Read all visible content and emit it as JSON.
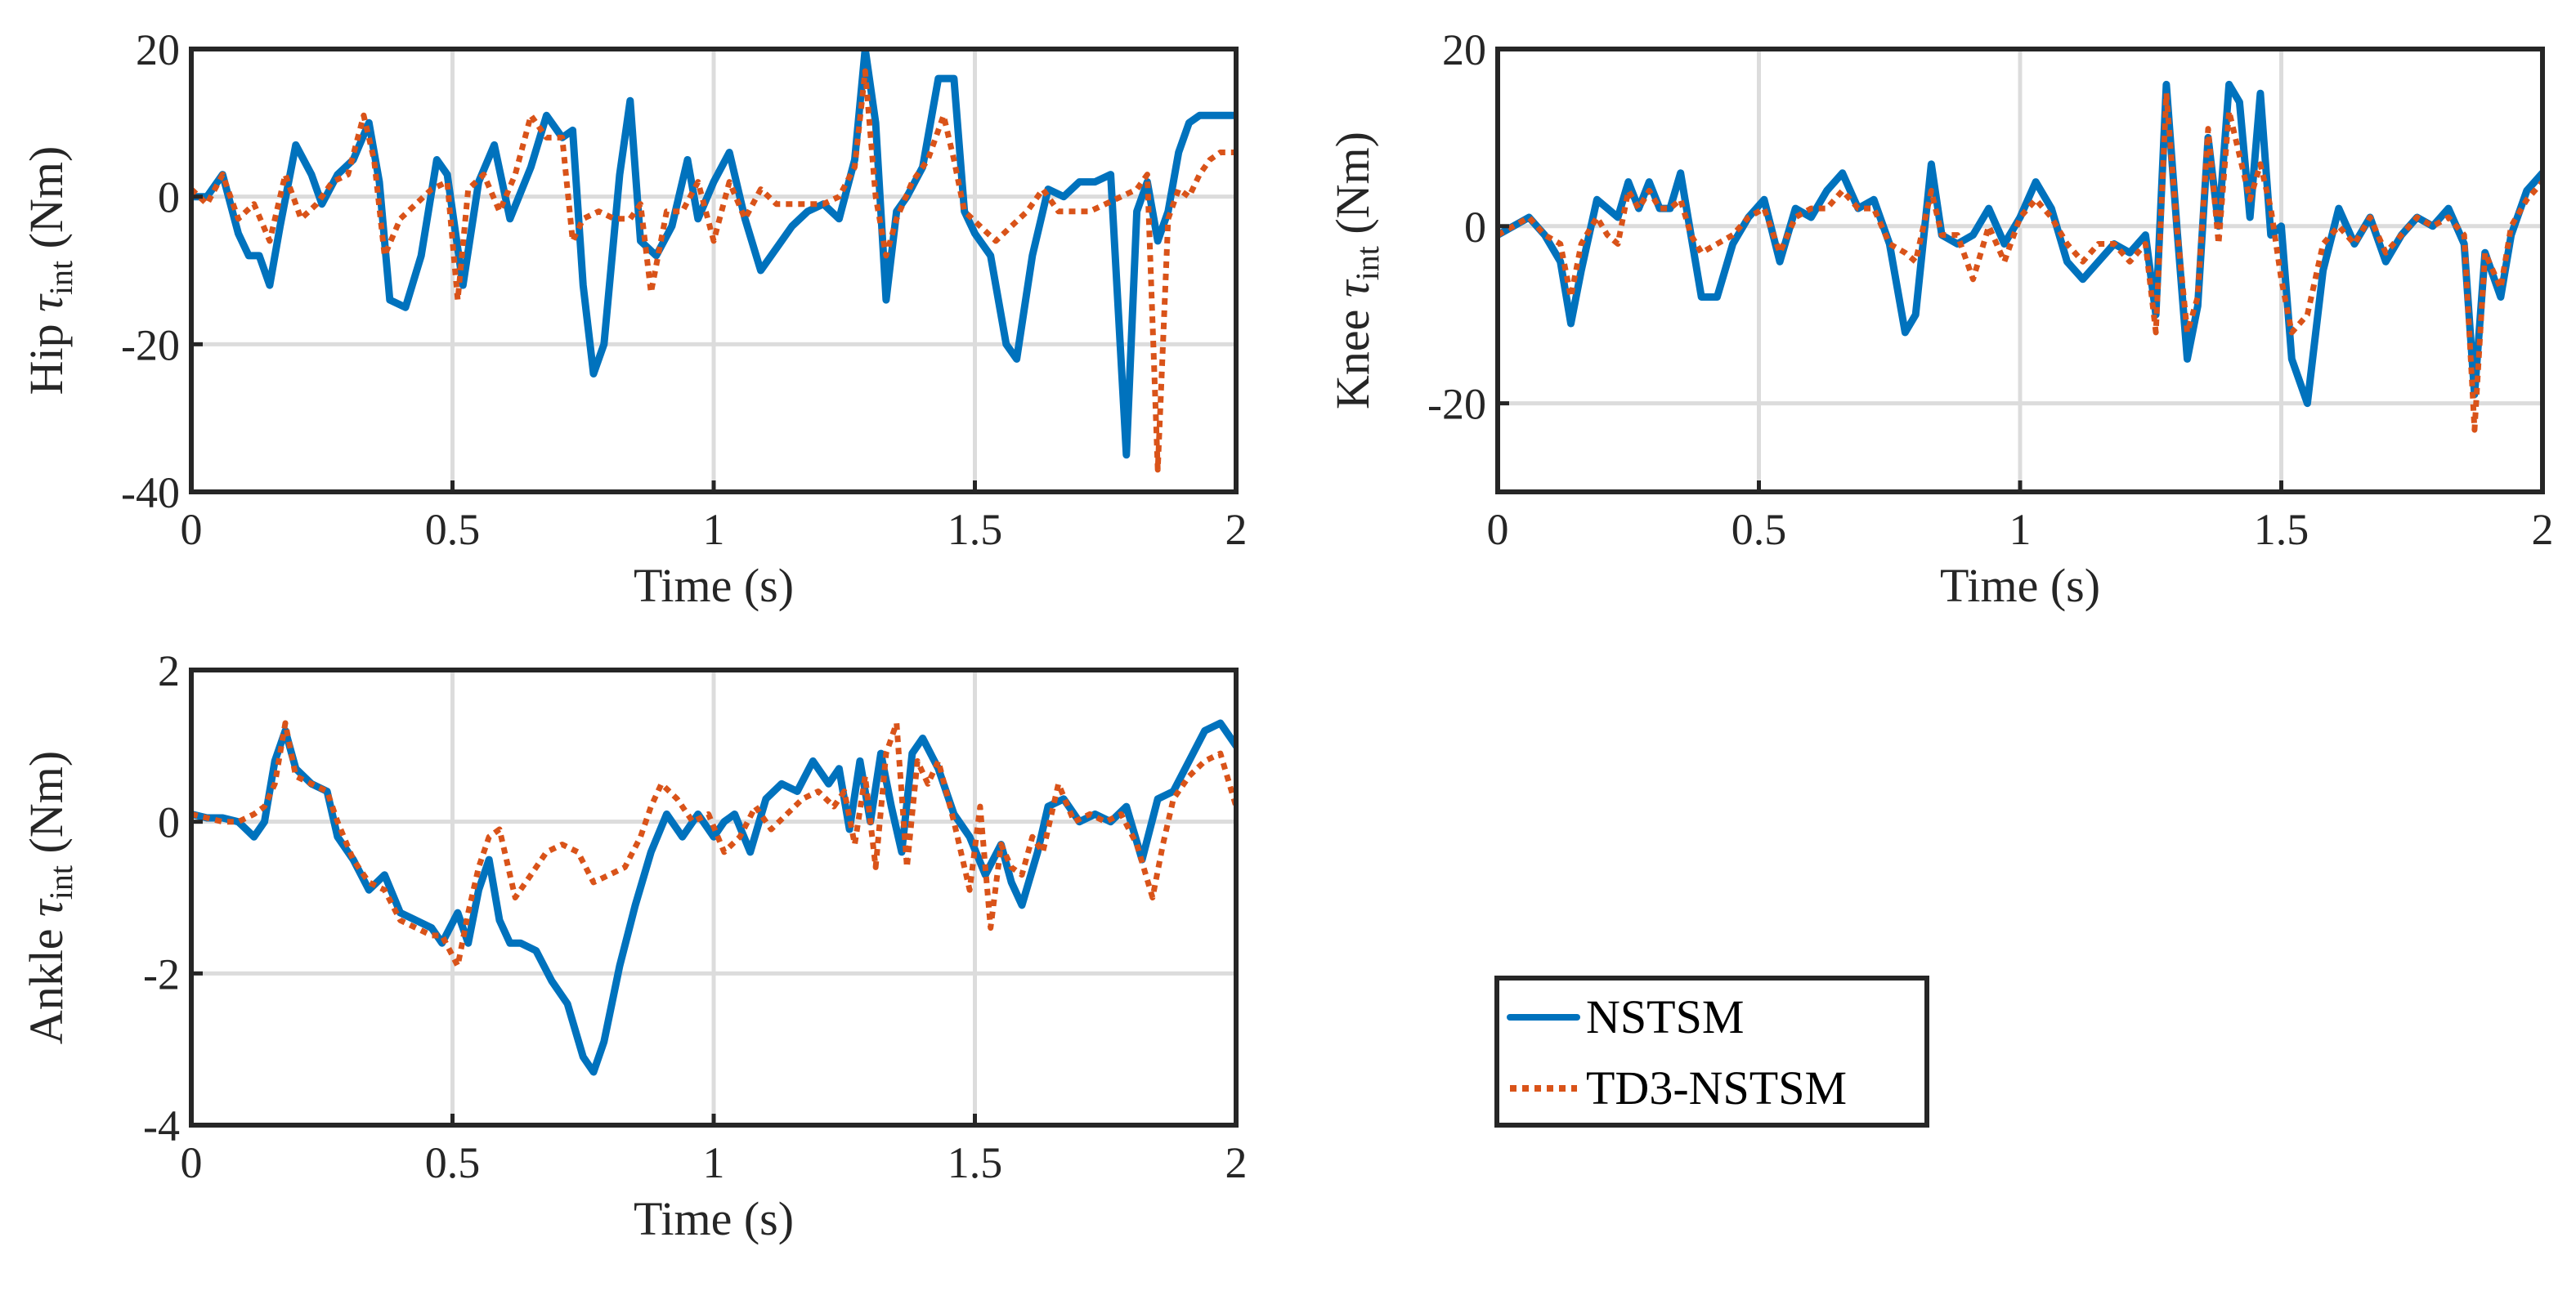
{
  "colors": {
    "nstsm": "#0072bd",
    "td3": "#d95319",
    "axis": "#262626",
    "grid": "#dcdcdc"
  },
  "legend": {
    "entries": [
      "NSTSM",
      "TD3-NSTSM"
    ],
    "placement": "bottom-right"
  },
  "chart_data": [
    {
      "id": "hip",
      "type": "line",
      "xlabel": "Time (s)",
      "ylabel_prefix": "Hip ",
      "ylabel_symbol": "τ",
      "ylabel_sub": "int",
      "ylabel_unit": " (Nm)",
      "xlim": [
        0,
        2
      ],
      "ylim": [
        -40,
        20
      ],
      "xticks": [
        0,
        0.5,
        1,
        1.5,
        2
      ],
      "xtick_labels": [
        "0",
        "0.5",
        "1",
        "1.5",
        "2"
      ],
      "yticks": [
        -40,
        -20,
        0,
        20
      ],
      "ytick_labels": [
        "-40",
        "-20",
        "0",
        "20"
      ],
      "grid": true,
      "series": [
        {
          "name": "NSTSM",
          "x": [
            0,
            0.03,
            0.06,
            0.09,
            0.11,
            0.13,
            0.15,
            0.17,
            0.2,
            0.23,
            0.25,
            0.28,
            0.31,
            0.34,
            0.36,
            0.38,
            0.41,
            0.44,
            0.47,
            0.49,
            0.52,
            0.55,
            0.58,
            0.61,
            0.65,
            0.68,
            0.71,
            0.73,
            0.75,
            0.77,
            0.79,
            0.82,
            0.84,
            0.86,
            0.89,
            0.92,
            0.95,
            0.97,
            1.0,
            1.03,
            1.06,
            1.09,
            1.12,
            1.15,
            1.18,
            1.21,
            1.24,
            1.27,
            1.29,
            1.31,
            1.33,
            1.35,
            1.37,
            1.4,
            1.43,
            1.46,
            1.48,
            1.5,
            1.53,
            1.56,
            1.58,
            1.61,
            1.64,
            1.67,
            1.7,
            1.73,
            1.76,
            1.79,
            1.81,
            1.83,
            1.85,
            1.87,
            1.89,
            1.91,
            1.93,
            1.95,
            1.97,
            2.0
          ],
          "y": [
            0,
            0,
            3,
            -5,
            -8,
            -8,
            -12,
            -4,
            7,
            3,
            -1,
            3,
            5,
            10,
            2,
            -14,
            -15,
            -8,
            5,
            3,
            -12,
            2,
            7,
            -3,
            4,
            11,
            8,
            9,
            -12,
            -24,
            -20,
            3,
            13,
            -6,
            -8,
            -4,
            5,
            -3,
            2,
            6,
            -3,
            -10,
            -7,
            -4,
            -2,
            -1,
            -3,
            5,
            20,
            10,
            -14,
            -2,
            0,
            4,
            16,
            16,
            -2,
            -5,
            -8,
            -20,
            -22,
            -8,
            1,
            0,
            2,
            2,
            3,
            -35,
            -2,
            2,
            -6,
            -2,
            6,
            10,
            11,
            11,
            11,
            11
          ]
        },
        {
          "name": "TD3-NSTSM",
          "x": [
            0,
            0.03,
            0.06,
            0.09,
            0.12,
            0.15,
            0.18,
            0.21,
            0.24,
            0.27,
            0.3,
            0.33,
            0.35,
            0.37,
            0.4,
            0.43,
            0.46,
            0.49,
            0.51,
            0.53,
            0.56,
            0.59,
            0.62,
            0.65,
            0.68,
            0.71,
            0.73,
            0.75,
            0.78,
            0.81,
            0.84,
            0.86,
            0.88,
            0.91,
            0.94,
            0.97,
            1.0,
            1.03,
            1.06,
            1.09,
            1.12,
            1.15,
            1.18,
            1.21,
            1.24,
            1.27,
            1.29,
            1.31,
            1.33,
            1.35,
            1.38,
            1.41,
            1.44,
            1.46,
            1.48,
            1.51,
            1.54,
            1.57,
            1.6,
            1.63,
            1.66,
            1.69,
            1.72,
            1.75,
            1.78,
            1.81,
            1.83,
            1.85,
            1.87,
            1.89,
            1.91,
            1.93,
            1.95,
            1.97,
            2.0
          ],
          "y": [
            1,
            -1,
            3,
            -3,
            -1,
            -6,
            3,
            -3,
            -1,
            2,
            3,
            11,
            5,
            -8,
            -3,
            -1,
            1,
            2,
            -14,
            1,
            3,
            -2,
            3,
            11,
            8,
            8,
            -6,
            -3,
            -2,
            -3,
            -3,
            -1,
            -13,
            -2,
            -2,
            2,
            -6,
            2,
            -3,
            1,
            -1,
            -1,
            -1,
            -1,
            0,
            4,
            17,
            0,
            -8,
            -3,
            2,
            5,
            11,
            5,
            -2,
            -4,
            -6,
            -4,
            -2,
            1,
            -2,
            -2,
            -2,
            -1,
            0,
            1,
            3,
            -37,
            -3,
            1,
            0,
            3,
            5,
            6,
            6
          ]
        }
      ]
    },
    {
      "id": "knee",
      "type": "line",
      "xlabel": "Time (s)",
      "ylabel_prefix": "Knee ",
      "ylabel_symbol": "τ",
      "ylabel_sub": "int",
      "ylabel_unit": " (Nm)",
      "xlim": [
        0,
        2
      ],
      "ylim": [
        -30,
        20
      ],
      "xticks": [
        0,
        0.5,
        1,
        1.5,
        2
      ],
      "xtick_labels": [
        "0",
        "0.5",
        "1",
        "1.5",
        "2"
      ],
      "yticks": [
        -20,
        0,
        20
      ],
      "ytick_labels": [
        "-20",
        "0",
        "20"
      ],
      "grid": true,
      "series": [
        {
          "name": "NSTSM",
          "x": [
            0,
            0.03,
            0.06,
            0.09,
            0.12,
            0.14,
            0.16,
            0.19,
            0.21,
            0.23,
            0.25,
            0.27,
            0.29,
            0.31,
            0.33,
            0.35,
            0.37,
            0.39,
            0.42,
            0.45,
            0.48,
            0.51,
            0.54,
            0.57,
            0.6,
            0.63,
            0.66,
            0.69,
            0.72,
            0.75,
            0.78,
            0.8,
            0.83,
            0.85,
            0.88,
            0.91,
            0.94,
            0.97,
            1.0,
            1.03,
            1.06,
            1.09,
            1.12,
            1.15,
            1.18,
            1.21,
            1.24,
            1.26,
            1.28,
            1.3,
            1.32,
            1.34,
            1.36,
            1.38,
            1.4,
            1.42,
            1.44,
            1.46,
            1.48,
            1.5,
            1.52,
            1.55,
            1.58,
            1.61,
            1.64,
            1.67,
            1.7,
            1.73,
            1.76,
            1.79,
            1.82,
            1.85,
            1.87,
            1.89,
            1.92,
            1.94,
            1.97,
            2.0
          ],
          "y": [
            -1,
            0,
            1,
            -1,
            -4,
            -11,
            -5,
            3,
            2,
            1,
            5,
            2,
            5,
            2,
            2,
            6,
            -1,
            -8,
            -8,
            -2,
            1,
            3,
            -4,
            2,
            1,
            4,
            6,
            2,
            3,
            -2,
            -12,
            -10,
            7,
            -1,
            -2,
            -1,
            2,
            -2,
            1,
            5,
            2,
            -4,
            -6,
            -4,
            -2,
            -3,
            -1,
            -10,
            16,
            0,
            -15,
            -9,
            10,
            0,
            16,
            14,
            1,
            15,
            -1,
            0,
            -15,
            -20,
            -5,
            2,
            -2,
            1,
            -4,
            -1,
            1,
            0,
            2,
            -2,
            -19,
            -3,
            -8,
            -1,
            4,
            6
          ]
        },
        {
          "name": "TD3-NSTSM",
          "x": [
            0,
            0.03,
            0.06,
            0.09,
            0.12,
            0.14,
            0.16,
            0.19,
            0.21,
            0.23,
            0.25,
            0.27,
            0.29,
            0.31,
            0.33,
            0.35,
            0.37,
            0.39,
            0.42,
            0.45,
            0.48,
            0.51,
            0.54,
            0.57,
            0.6,
            0.63,
            0.66,
            0.69,
            0.72,
            0.75,
            0.78,
            0.8,
            0.83,
            0.85,
            0.88,
            0.91,
            0.94,
            0.97,
            1.0,
            1.03,
            1.06,
            1.09,
            1.12,
            1.15,
            1.18,
            1.21,
            1.24,
            1.26,
            1.28,
            1.3,
            1.32,
            1.34,
            1.36,
            1.38,
            1.4,
            1.42,
            1.44,
            1.46,
            1.48,
            1.5,
            1.52,
            1.55,
            1.58,
            1.61,
            1.64,
            1.67,
            1.7,
            1.73,
            1.76,
            1.79,
            1.82,
            1.85,
            1.87,
            1.89,
            1.92,
            1.94,
            1.97,
            2.0
          ],
          "y": [
            -1,
            0,
            1,
            -1,
            -2,
            -8,
            -2,
            1,
            -1,
            -2,
            4,
            2,
            4,
            2,
            2,
            3,
            -1,
            -3,
            -2,
            -1,
            1,
            2,
            -3,
            1,
            2,
            2,
            4,
            2,
            2,
            -2,
            -3,
            -4,
            4,
            -1,
            -1,
            -6,
            0,
            -4,
            1,
            3,
            1,
            -2,
            -4,
            -2,
            -2,
            -4,
            -2,
            -12,
            15,
            0,
            -12,
            -8,
            11,
            -2,
            13,
            8,
            3,
            7,
            2,
            -6,
            -12,
            -10,
            -2,
            0,
            -2,
            1,
            -3,
            -1,
            1,
            0,
            1,
            -1,
            -23,
            -3,
            -7,
            0,
            3,
            5
          ]
        }
      ]
    },
    {
      "id": "ankle",
      "type": "line",
      "xlabel": "Time (s)",
      "ylabel_prefix": "Ankle ",
      "ylabel_symbol": "τ",
      "ylabel_sub": "int",
      "ylabel_unit": " (Nm)",
      "xlim": [
        0,
        2
      ],
      "ylim": [
        -4,
        2
      ],
      "xticks": [
        0,
        0.5,
        1,
        1.5,
        2
      ],
      "xtick_labels": [
        "0",
        "0.5",
        "1",
        "1.5",
        "2"
      ],
      "yticks": [
        -4,
        -2,
        0,
        2
      ],
      "ytick_labels": [
        "-4",
        "-2",
        "0",
        "2"
      ],
      "grid": true,
      "series": [
        {
          "name": "NSTSM",
          "x": [
            0,
            0.03,
            0.06,
            0.09,
            0.12,
            0.14,
            0.16,
            0.18,
            0.2,
            0.23,
            0.26,
            0.28,
            0.31,
            0.34,
            0.37,
            0.4,
            0.43,
            0.46,
            0.48,
            0.51,
            0.53,
            0.55,
            0.57,
            0.59,
            0.61,
            0.63,
            0.66,
            0.69,
            0.72,
            0.75,
            0.77,
            0.79,
            0.82,
            0.85,
            0.88,
            0.91,
            0.94,
            0.97,
            1.0,
            1.02,
            1.04,
            1.07,
            1.1,
            1.13,
            1.16,
            1.19,
            1.22,
            1.24,
            1.26,
            1.28,
            1.3,
            1.32,
            1.34,
            1.36,
            1.38,
            1.4,
            1.43,
            1.46,
            1.49,
            1.52,
            1.55,
            1.57,
            1.59,
            1.62,
            1.64,
            1.67,
            1.7,
            1.73,
            1.76,
            1.79,
            1.82,
            1.85,
            1.88,
            1.91,
            1.94,
            1.97,
            2.0
          ],
          "y": [
            0.1,
            0.05,
            0.05,
            0,
            -0.2,
            0,
            0.8,
            1.2,
            0.7,
            0.5,
            0.4,
            -0.2,
            -0.5,
            -0.9,
            -0.7,
            -1.2,
            -1.3,
            -1.4,
            -1.6,
            -1.2,
            -1.6,
            -0.9,
            -0.5,
            -1.3,
            -1.6,
            -1.6,
            -1.7,
            -2.1,
            -2.4,
            -3.1,
            -3.3,
            -2.9,
            -1.9,
            -1.1,
            -0.4,
            0.1,
            -0.2,
            0.1,
            -0.2,
            0,
            0.1,
            -0.4,
            0.3,
            0.5,
            0.4,
            0.8,
            0.5,
            0.7,
            -0.1,
            0.8,
            0,
            0.9,
            0.2,
            -0.4,
            0.9,
            1.1,
            0.7,
            0.1,
            -0.2,
            -0.7,
            -0.3,
            -0.8,
            -1.1,
            -0.4,
            0.2,
            0.3,
            0,
            0.1,
            0,
            0.2,
            -0.5,
            0.3,
            0.4,
            0.8,
            1.2,
            1.3,
            1.0
          ]
        },
        {
          "name": "TD3-NSTSM",
          "x": [
            0,
            0.03,
            0.06,
            0.09,
            0.12,
            0.14,
            0.16,
            0.18,
            0.2,
            0.23,
            0.26,
            0.28,
            0.31,
            0.34,
            0.37,
            0.4,
            0.43,
            0.46,
            0.48,
            0.51,
            0.53,
            0.55,
            0.57,
            0.59,
            0.62,
            0.65,
            0.68,
            0.71,
            0.74,
            0.77,
            0.8,
            0.83,
            0.86,
            0.88,
            0.9,
            0.93,
            0.96,
            0.99,
            1.02,
            1.05,
            1.08,
            1.11,
            1.14,
            1.17,
            1.2,
            1.23,
            1.25,
            1.27,
            1.29,
            1.31,
            1.33,
            1.35,
            1.37,
            1.39,
            1.41,
            1.43,
            1.46,
            1.49,
            1.51,
            1.53,
            1.55,
            1.57,
            1.59,
            1.61,
            1.63,
            1.66,
            1.69,
            1.72,
            1.75,
            1.78,
            1.81,
            1.84,
            1.86,
            1.88,
            1.91,
            1.94,
            1.97,
            2.0
          ],
          "y": [
            0.1,
            0.05,
            0,
            0,
            0.1,
            0.2,
            0.5,
            1.3,
            0.6,
            0.5,
            0.4,
            0,
            -0.5,
            -0.8,
            -0.9,
            -1.3,
            -1.4,
            -1.5,
            -1.5,
            -1.9,
            -1.2,
            -0.6,
            -0.2,
            -0.1,
            -1.0,
            -0.7,
            -0.4,
            -0.3,
            -0.4,
            -0.8,
            -0.7,
            -0.6,
            -0.2,
            0.2,
            0.5,
            0.3,
            0,
            0.1,
            -0.4,
            -0.2,
            0.2,
            -0.1,
            0.1,
            0.3,
            0.4,
            0.2,
            0.4,
            -0.3,
            0.6,
            -0.6,
            0.9,
            1.3,
            -0.6,
            0.8,
            0.5,
            0.8,
            0,
            -0.9,
            0.2,
            -1.4,
            -0.3,
            -0.6,
            -0.7,
            -0.2,
            -0.4,
            0.5,
            0,
            0.1,
            0,
            0.1,
            -0.3,
            -1.0,
            -0.3,
            0.3,
            0.6,
            0.8,
            0.9,
            0.2
          ]
        }
      ]
    }
  ]
}
